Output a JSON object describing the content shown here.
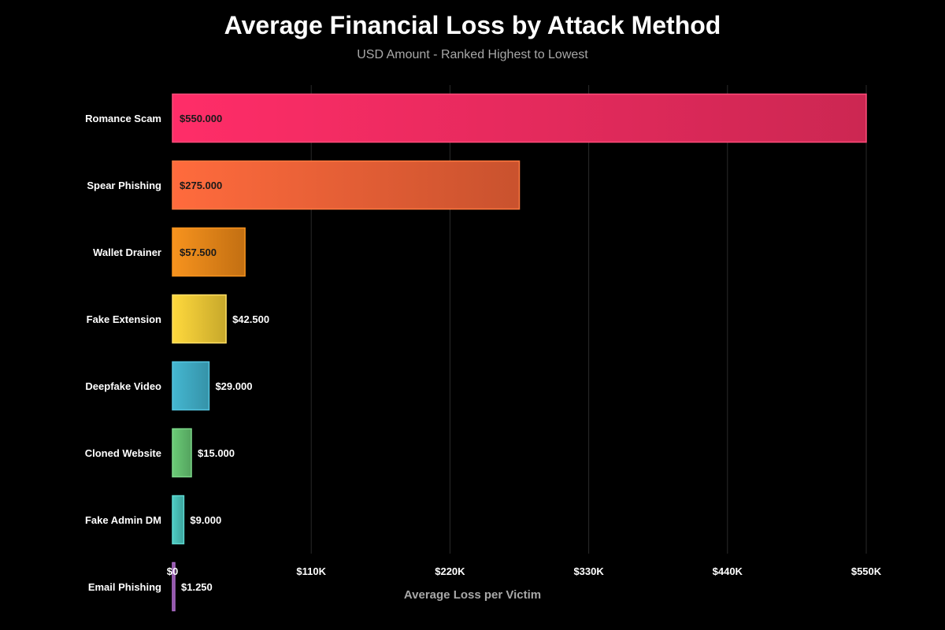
{
  "chart_data": {
    "type": "bar",
    "orientation": "horizontal",
    "title": "Average Financial Loss by Attack Method",
    "subtitle": "USD Amount - Ranked Highest to Lowest",
    "xlabel": "Average Loss per Victim",
    "ylabel": "",
    "xlim": [
      0,
      550000
    ],
    "x_ticks": [
      0,
      110000,
      220000,
      330000,
      440000,
      550000
    ],
    "x_tick_labels": [
      "$0",
      "$110K",
      "$220K",
      "$330K",
      "$440K",
      "$550K"
    ],
    "grid": true,
    "categories": [
      "Romance Scam",
      "Spear Phishing",
      "Wallet Drainer",
      "Fake Extension",
      "Deepfake Video",
      "Cloned Website",
      "Fake Admin DM",
      "Email Phishing"
    ],
    "values": [
      550000,
      275000,
      57500,
      42500,
      29000,
      15000,
      9000,
      1250
    ],
    "value_labels": [
      "$550.000",
      "$275.000",
      "$57.500",
      "$42.500",
      "$29.000",
      "$15.000",
      "$9.000",
      "$1.250"
    ],
    "colors": [
      [
        "#ff2d68",
        "#cc2752"
      ],
      [
        "#ff6b3d",
        "#c9522e"
      ],
      [
        "#f7931e",
        "#c26f12"
      ],
      [
        "#ffd93d",
        "#c7a82b"
      ],
      [
        "#45b7d1",
        "#3592a8"
      ],
      [
        "#6bcb77",
        "#54a35e"
      ],
      [
        "#4ecdc4",
        "#3da39c"
      ],
      [
        "#9b59b6",
        "#7d4694"
      ]
    ],
    "border_colors": [
      "#ff4d7a",
      "#ff7a40",
      "#f7931e",
      "#ffe066",
      "#55c5e0",
      "#7dd88a",
      "#5edad2",
      "#a96bc4"
    ]
  }
}
